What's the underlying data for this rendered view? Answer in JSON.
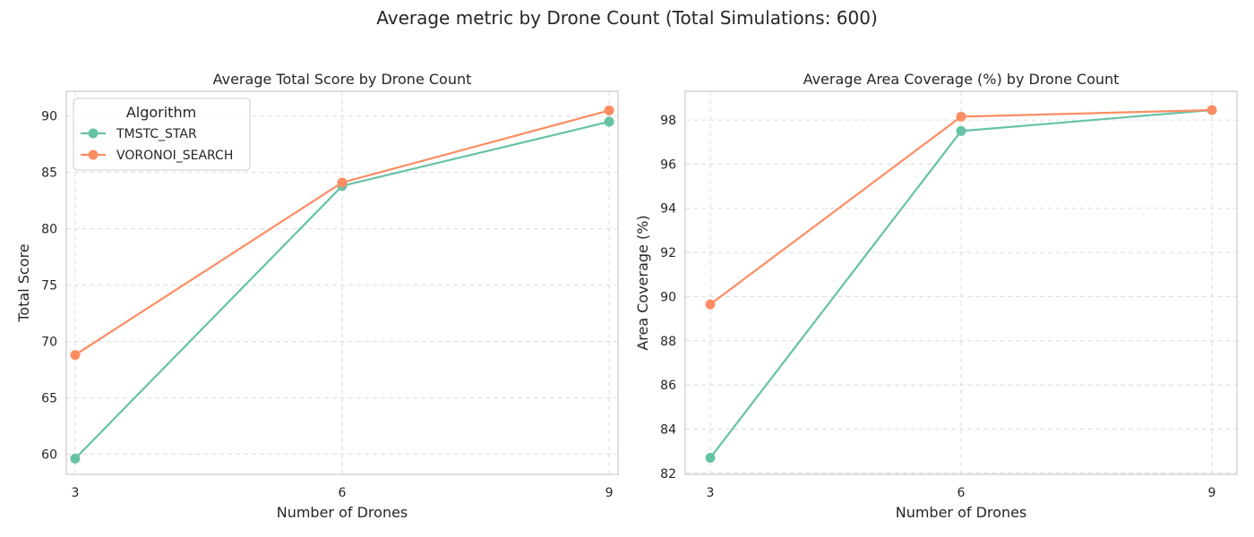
{
  "suptitle": "Average metric by Drone Count (Total Simulations: 600)",
  "colors": {
    "TMSTC_STAR": "#66c2a5",
    "VORONOI_SEARCH": "#fc8d62"
  },
  "chart_data": [
    {
      "type": "line",
      "title": "Average Total Score by Drone Count",
      "xlabel": "Number of Drones",
      "ylabel": "Total Score",
      "x": [
        3,
        6,
        9
      ],
      "xticks": [
        "3",
        "6",
        "9"
      ],
      "xlim": [
        2.9,
        9.1
      ],
      "ylim": [
        58.2,
        92.2
      ],
      "yticks": [
        60,
        65,
        70,
        75,
        80,
        85,
        90
      ],
      "grid": true,
      "legend": {
        "title": "Algorithm",
        "placement": "top-left"
      },
      "series": [
        {
          "name": "TMSTC_STAR",
          "values": [
            59.6,
            83.8,
            89.5
          ]
        },
        {
          "name": "VORONOI_SEARCH",
          "values": [
            68.8,
            84.1,
            90.5
          ]
        }
      ]
    },
    {
      "type": "line",
      "title": "Average Area Coverage (%) by Drone Count",
      "xlabel": "Number of Drones",
      "ylabel": "Area Coverage (%)",
      "x": [
        3,
        6,
        9
      ],
      "xticks": [
        "3",
        "6",
        "9"
      ],
      "xlim": [
        2.7,
        9.3
      ],
      "ylim": [
        81.95,
        99.3
      ],
      "yticks": [
        82,
        84,
        86,
        88,
        90,
        92,
        94,
        96,
        98
      ],
      "grid": true,
      "series": [
        {
          "name": "TMSTC_STAR",
          "values": [
            82.7,
            97.5,
            98.45
          ]
        },
        {
          "name": "VORONOI_SEARCH",
          "values": [
            89.65,
            98.15,
            98.45
          ]
        }
      ]
    }
  ]
}
